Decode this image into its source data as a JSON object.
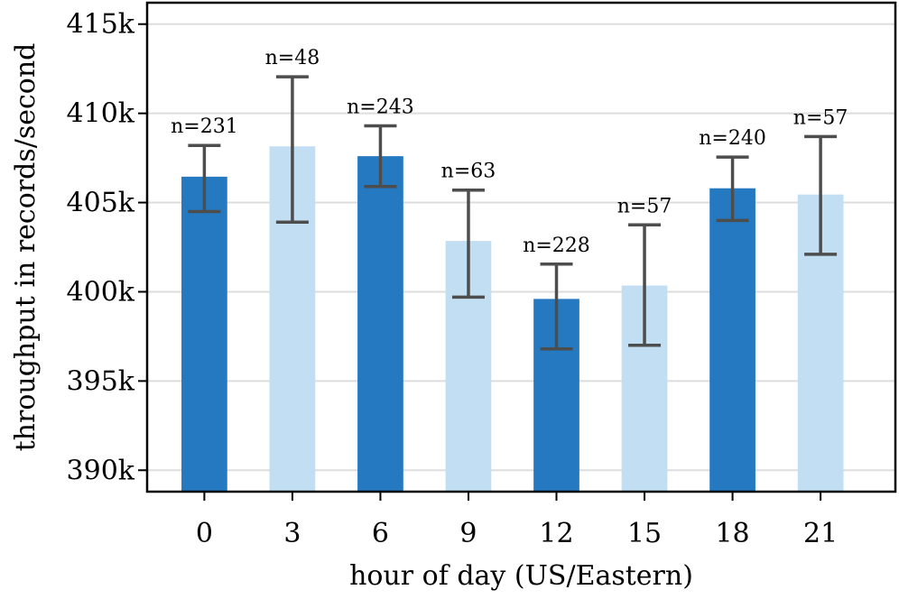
{
  "chart_data": {
    "type": "bar",
    "title": "",
    "xlabel": "hour of day (US/Eastern)",
    "ylabel": "throughput in records/second",
    "categories": [
      "0",
      "3",
      "6",
      "9",
      "12",
      "15",
      "18",
      "21"
    ],
    "values": [
      406450,
      408150,
      407600,
      402850,
      399600,
      400350,
      405800,
      405450
    ],
    "error_low": [
      404500,
      403900,
      405900,
      399700,
      396800,
      397000,
      404000,
      402100
    ],
    "error_high": [
      408200,
      412050,
      409300,
      405700,
      401550,
      403750,
      407550,
      408700
    ],
    "counts": [
      "n=231",
      "n=48",
      "n=243",
      "n=63",
      "n=228",
      "n=57",
      "n=240",
      "n=57"
    ],
    "ylim": [
      388800,
      416200
    ],
    "yticks": [
      390000,
      395000,
      400000,
      405000,
      410000,
      415000
    ],
    "ytick_labels": [
      "390k",
      "395k",
      "400k",
      "405k",
      "410k",
      "415k"
    ],
    "grid": true,
    "legend": "none",
    "colors": {
      "dark_bar": "#2479c1",
      "light_bar": "#c2def3",
      "error_bar": "#4d4d4d",
      "grid": "#dddddd",
      "frame": "#000000"
    }
  }
}
